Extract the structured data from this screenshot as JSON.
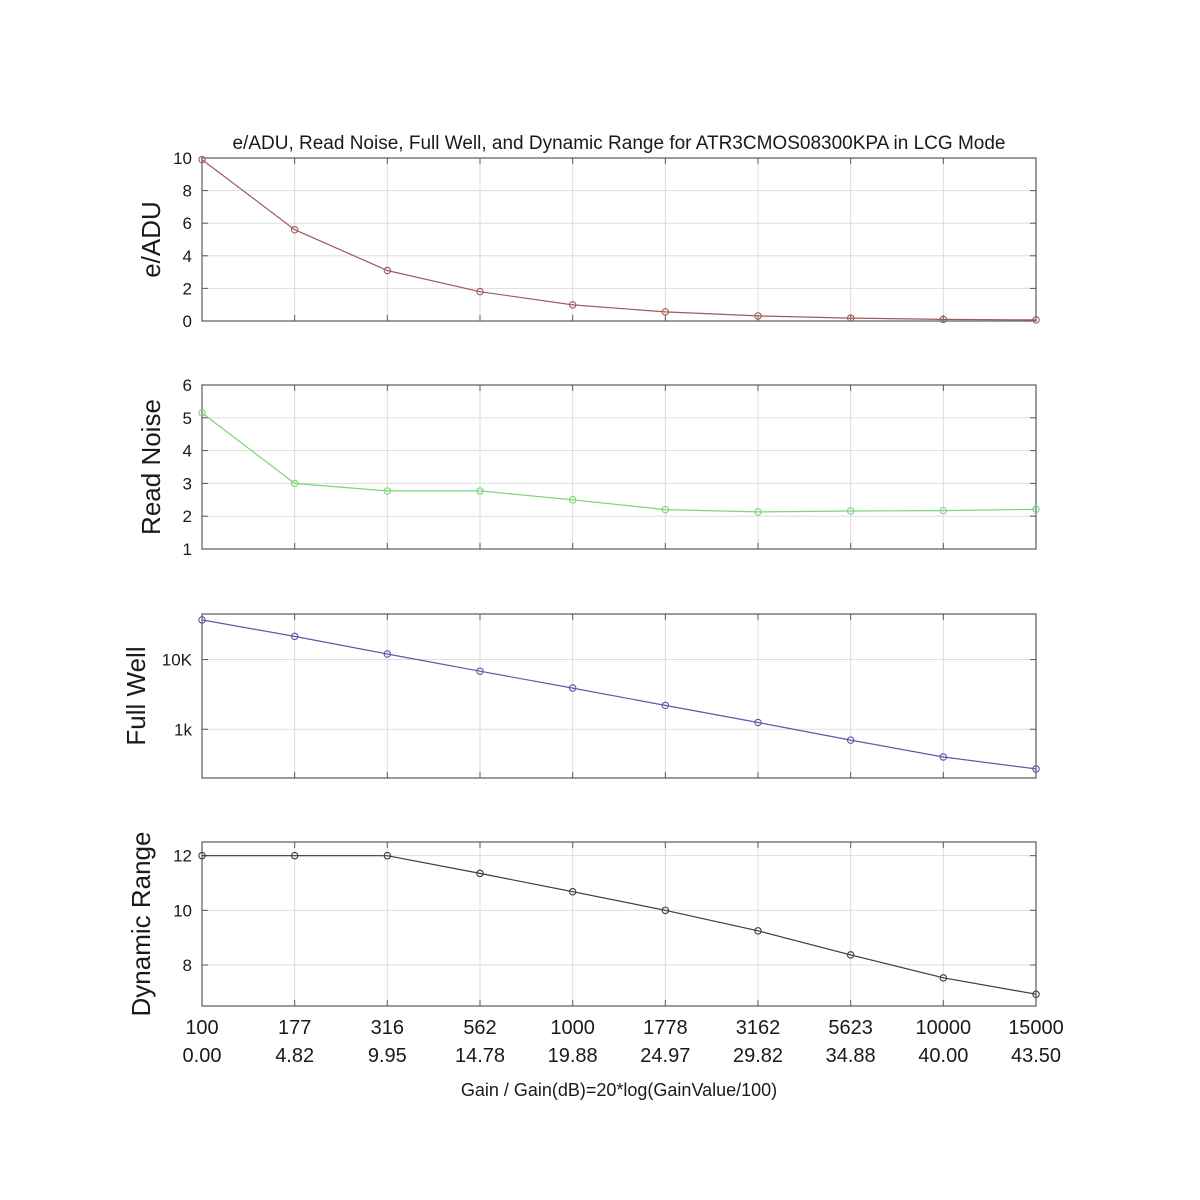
{
  "chart_data": {
    "title": "e/ADU, Read Noise, Full Well, and Dynamic Range for ATR3CMOS08300KPA in LCG Mode",
    "xlabel": "Gain / Gain(dB)=20*log(GainValue/100)",
    "x_gain": [
      "100",
      "177",
      "316",
      "562",
      "1000",
      "1778",
      "3162",
      "5623",
      "10000",
      "15000"
    ],
    "x_gain_db": [
      "0.00",
      "4.82",
      "9.95",
      "14.78",
      "19.88",
      "24.97",
      "29.82",
      "34.88",
      "40.00",
      "43.50"
    ],
    "panels": [
      {
        "type": "line",
        "ylabel": "e/ADU",
        "scale": "linear",
        "ylim": [
          0,
          10
        ],
        "yticks": [
          0,
          2,
          4,
          6,
          8,
          10
        ],
        "yticklabels": [
          "0",
          "2",
          "4",
          "6",
          "8",
          "10"
        ],
        "color": "#a05a5a",
        "values": [
          9.9,
          5.6,
          3.1,
          1.8,
          0.99,
          0.56,
          0.31,
          0.18,
          0.1,
          0.07
        ]
      },
      {
        "type": "line",
        "ylabel": "Read Noise",
        "scale": "linear",
        "ylim": [
          1,
          6
        ],
        "yticks": [
          1,
          2,
          3,
          4,
          5,
          6
        ],
        "yticklabels": [
          "1",
          "2",
          "3",
          "4",
          "5",
          "6"
        ],
        "color": "#7ad67a",
        "values": [
          5.15,
          3.0,
          2.77,
          2.77,
          2.5,
          2.2,
          2.13,
          2.16,
          2.17,
          2.21
        ]
      },
      {
        "type": "line",
        "ylabel": "Full Well",
        "scale": "log",
        "ylim": [
          200,
          45000
        ],
        "yticks": [
          1000,
          10000
        ],
        "yticklabels": [
          "1k",
          "10K"
        ],
        "color": "#5a5aa8",
        "values": [
          37000,
          21500,
          12000,
          6800,
          3900,
          2200,
          1250,
          700,
          400,
          270
        ]
      },
      {
        "type": "line",
        "ylabel": "Dynamic Range",
        "scale": "linear",
        "ylim": [
          6.5,
          12.5
        ],
        "yticks": [
          8,
          10,
          12
        ],
        "yticklabels": [
          "8",
          "10",
          "12"
        ],
        "color": "#3c3c3c",
        "values": [
          12,
          12,
          12,
          11.35,
          10.68,
          10.0,
          9.25,
          8.37,
          7.53,
          6.93
        ]
      }
    ]
  }
}
